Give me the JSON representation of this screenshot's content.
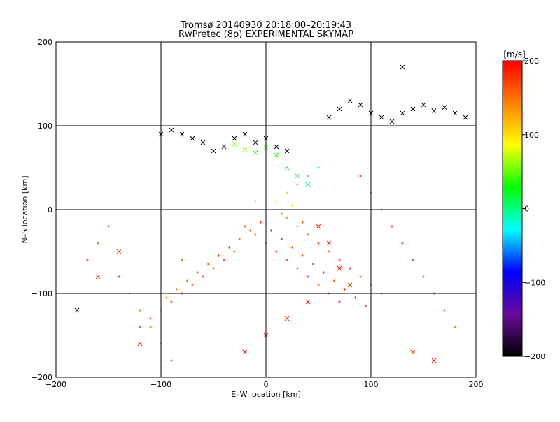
{
  "chart_data": {
    "type": "scatter",
    "title": "Tromsø 20140930 20:18:00–20:19:43",
    "subtitle": "RwPretec (8p) EXPERIMENTAL SKYMAP",
    "xlabel": "E–W location [km]",
    "ylabel": "N–S location [km]",
    "xlim": [
      -200,
      200
    ],
    "ylim": [
      -200,
      200
    ],
    "xticks": [
      -200,
      -100,
      0,
      100,
      200
    ],
    "yticks": [
      -200,
      -100,
      0,
      100,
      200
    ],
    "grid": true,
    "colorbar": {
      "label": "[m/s]",
      "min": -200,
      "max": 200,
      "ticks": [
        -200,
        -100,
        0,
        100,
        200
      ],
      "colors": [
        "#000000",
        "#6a0a9c",
        "#0000ff",
        "#00ffff",
        "#00ff00",
        "#ffff00",
        "#ff8000",
        "#ff0000"
      ]
    },
    "markers": {
      "plus": "+",
      "cross": "×"
    },
    "series": [
      {
        "marker": "plus",
        "points": [
          [
            -20,
            -20,
            180
          ],
          [
            -10,
            -30,
            170
          ],
          [
            0,
            -40,
            190
          ],
          [
            10,
            -50,
            200
          ],
          [
            20,
            -60,
            185
          ],
          [
            30,
            -70,
            175
          ],
          [
            40,
            -80,
            190
          ],
          [
            50,
            -90,
            160
          ],
          [
            60,
            -100,
            180
          ],
          [
            70,
            -110,
            200
          ],
          [
            -30,
            -50,
            170
          ],
          [
            -40,
            -60,
            190
          ],
          [
            -50,
            -70,
            180
          ],
          [
            -60,
            -80,
            175
          ],
          [
            -70,
            -90,
            165
          ],
          [
            -80,
            -100,
            190
          ],
          [
            -90,
            -110,
            180
          ],
          [
            -100,
            -120,
            170
          ],
          [
            -110,
            -130,
            190
          ],
          [
            -120,
            -140,
            185
          ],
          [
            20,
            -10,
            150
          ],
          [
            30,
            -20,
            130
          ],
          [
            40,
            -30,
            170
          ],
          [
            50,
            -40,
            190
          ],
          [
            60,
            -50,
            160
          ],
          [
            70,
            -60,
            180
          ],
          [
            80,
            -70,
            200
          ],
          [
            90,
            -80,
            175
          ],
          [
            100,
            -90,
            165
          ],
          [
            110,
            -100,
            190
          ],
          [
            10,
            10,
            80
          ],
          [
            20,
            20,
            60
          ],
          [
            30,
            30,
            40
          ],
          [
            40,
            40,
            20
          ],
          [
            50,
            50,
            10
          ],
          [
            0,
            0,
            100
          ],
          [
            -10,
            10,
            120
          ],
          [
            15,
            -5,
            140
          ],
          [
            25,
            5,
            110
          ],
          [
            35,
            -15,
            150
          ],
          [
            5,
            -25,
            195
          ],
          [
            15,
            -35,
            185
          ],
          [
            25,
            -45,
            175
          ],
          [
            35,
            -55,
            165
          ],
          [
            45,
            -65,
            190
          ],
          [
            55,
            -75,
            180
          ],
          [
            65,
            -85,
            170
          ],
          [
            75,
            -95,
            195
          ],
          [
            85,
            -105,
            185
          ],
          [
            95,
            -115,
            175
          ],
          [
            -5,
            -15,
            170
          ],
          [
            -15,
            -25,
            160
          ],
          [
            -25,
            -35,
            150
          ],
          [
            -35,
            -45,
            190
          ],
          [
            -45,
            -55,
            180
          ],
          [
            -55,
            -65,
            170
          ],
          [
            -65,
            -75,
            160
          ],
          [
            -75,
            -85,
            150
          ],
          [
            -85,
            -95,
            140
          ],
          [
            -95,
            -105,
            130
          ],
          [
            130,
            -40,
            180
          ],
          [
            140,
            -60,
            190
          ],
          [
            150,
            -80,
            170
          ],
          [
            160,
            -100,
            200
          ],
          [
            170,
            -120,
            180
          ],
          [
            180,
            -140,
            160
          ],
          [
            120,
            -20,
            190
          ],
          [
            110,
            0,
            175
          ],
          [
            100,
            20,
            185
          ],
          [
            90,
            40,
            195
          ],
          [
            -150,
            -20,
            180
          ],
          [
            -160,
            -40,
            170
          ],
          [
            -170,
            -60,
            190
          ],
          [
            -140,
            -80,
            200
          ],
          [
            -130,
            -100,
            185
          ],
          [
            -120,
            -120,
            175
          ],
          [
            -110,
            -140,
            165
          ],
          [
            -100,
            -160,
            190
          ],
          [
            -90,
            -180,
            180
          ],
          [
            -80,
            -60,
            170
          ]
        ]
      },
      {
        "marker": "cross",
        "points": [
          [
            -60,
            80,
            -200
          ],
          [
            -50,
            70,
            -190
          ],
          [
            -40,
            75,
            -180
          ],
          [
            -30,
            85,
            -200
          ],
          [
            -20,
            90,
            -195
          ],
          [
            -10,
            80,
            -185
          ],
          [
            0,
            85,
            -200
          ],
          [
            10,
            75,
            -190
          ],
          [
            20,
            70,
            -180
          ],
          [
            -70,
            85,
            -200
          ],
          [
            -80,
            90,
            -195
          ],
          [
            -90,
            95,
            -200
          ],
          [
            -100,
            90,
            -185
          ],
          [
            60,
            110,
            -200
          ],
          [
            70,
            120,
            -190
          ],
          [
            80,
            130,
            -180
          ],
          [
            90,
            125,
            -200
          ],
          [
            100,
            115,
            -195
          ],
          [
            110,
            110,
            -185
          ],
          [
            120,
            105,
            -200
          ],
          [
            130,
            115,
            -190
          ],
          [
            140,
            120,
            -200
          ],
          [
            150,
            125,
            -180
          ],
          [
            160,
            118,
            -195
          ],
          [
            170,
            122,
            -200
          ],
          [
            180,
            115,
            -185
          ],
          [
            190,
            110,
            -200
          ],
          [
            -20,
            72,
            60
          ],
          [
            -10,
            68,
            40
          ],
          [
            0,
            74,
            50
          ],
          [
            10,
            65,
            30
          ],
          [
            -30,
            78,
            55
          ],
          [
            20,
            50,
            20
          ],
          [
            30,
            40,
            10
          ],
          [
            40,
            30,
            0
          ],
          [
            50,
            -20,
            190
          ],
          [
            60,
            -40,
            180
          ],
          [
            70,
            -70,
            200
          ],
          [
            80,
            -90,
            170
          ],
          [
            40,
            -110,
            190
          ],
          [
            20,
            -130,
            180
          ],
          [
            0,
            -150,
            200
          ],
          [
            -20,
            -170,
            190
          ],
          [
            140,
            -170,
            180
          ],
          [
            160,
            -180,
            200
          ],
          [
            -140,
            -50,
            170
          ],
          [
            -160,
            -80,
            180
          ],
          [
            -180,
            -120,
            -200
          ],
          [
            -120,
            -160,
            190
          ],
          [
            130,
            170,
            -200
          ]
        ]
      }
    ]
  }
}
